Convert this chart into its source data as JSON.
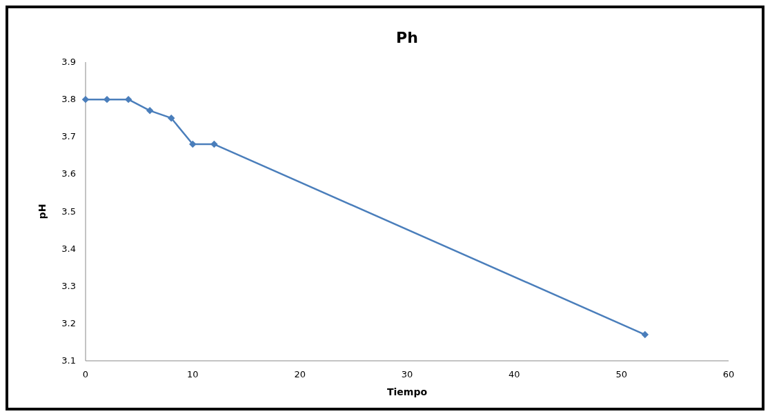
{
  "chart_data": {
    "type": "line",
    "title": "Ph",
    "xlabel": "Tiempo",
    "ylabel": "pH",
    "x": [
      0,
      2,
      4,
      6,
      8,
      10,
      12,
      52.2
    ],
    "series": [
      {
        "color": "#4a7ebb",
        "values": [
          3.8,
          3.8,
          3.8,
          3.77,
          3.75,
          3.68,
          3.68,
          3.17
        ]
      }
    ],
    "xlim": [
      0,
      60
    ],
    "xticks": [
      0,
      10,
      20,
      30,
      40,
      50,
      60
    ],
    "ylim": [
      3.1,
      3.9
    ],
    "yticks": [
      3.1,
      3.2,
      3.3,
      3.4,
      3.5,
      3.6,
      3.7,
      3.8,
      3.9
    ],
    "marker": "diamond",
    "line_style": "solid",
    "grid": false
  }
}
